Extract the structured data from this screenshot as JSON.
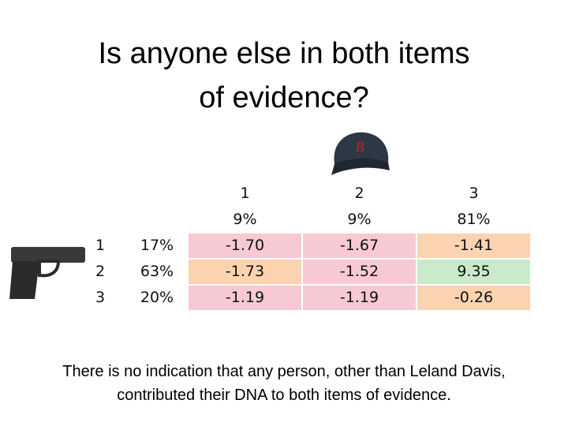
{
  "title": "Is anyone else in both items of evidence?",
  "table": {
    "columns": [
      {
        "label": "1",
        "percent": "9%"
      },
      {
        "label": "2",
        "percent": "9%"
      },
      {
        "label": "3",
        "percent": "81%"
      }
    ],
    "rows": [
      {
        "label": "1",
        "percent": "17%",
        "cells": [
          "-1.70",
          "-1.67",
          "-1.41"
        ],
        "colors": [
          "#f6c9d3",
          "#f6c9d3",
          "#fbd3b0"
        ]
      },
      {
        "label": "2",
        "percent": "63%",
        "cells": [
          "-1.73",
          "-1.52",
          "9.35"
        ],
        "colors": [
          "#fbd3b0",
          "#f6c9d3",
          "#c9ebcc"
        ]
      },
      {
        "label": "3",
        "percent": "20%",
        "cells": [
          "-1.19",
          "-1.19",
          "-0.26"
        ],
        "colors": [
          "#f6c9d3",
          "#f6c9d3",
          "#fbd3b0"
        ]
      }
    ]
  },
  "caption": "There is no indication that any person, other than Leland Davis, contributed their DNA to both items of evidence."
}
